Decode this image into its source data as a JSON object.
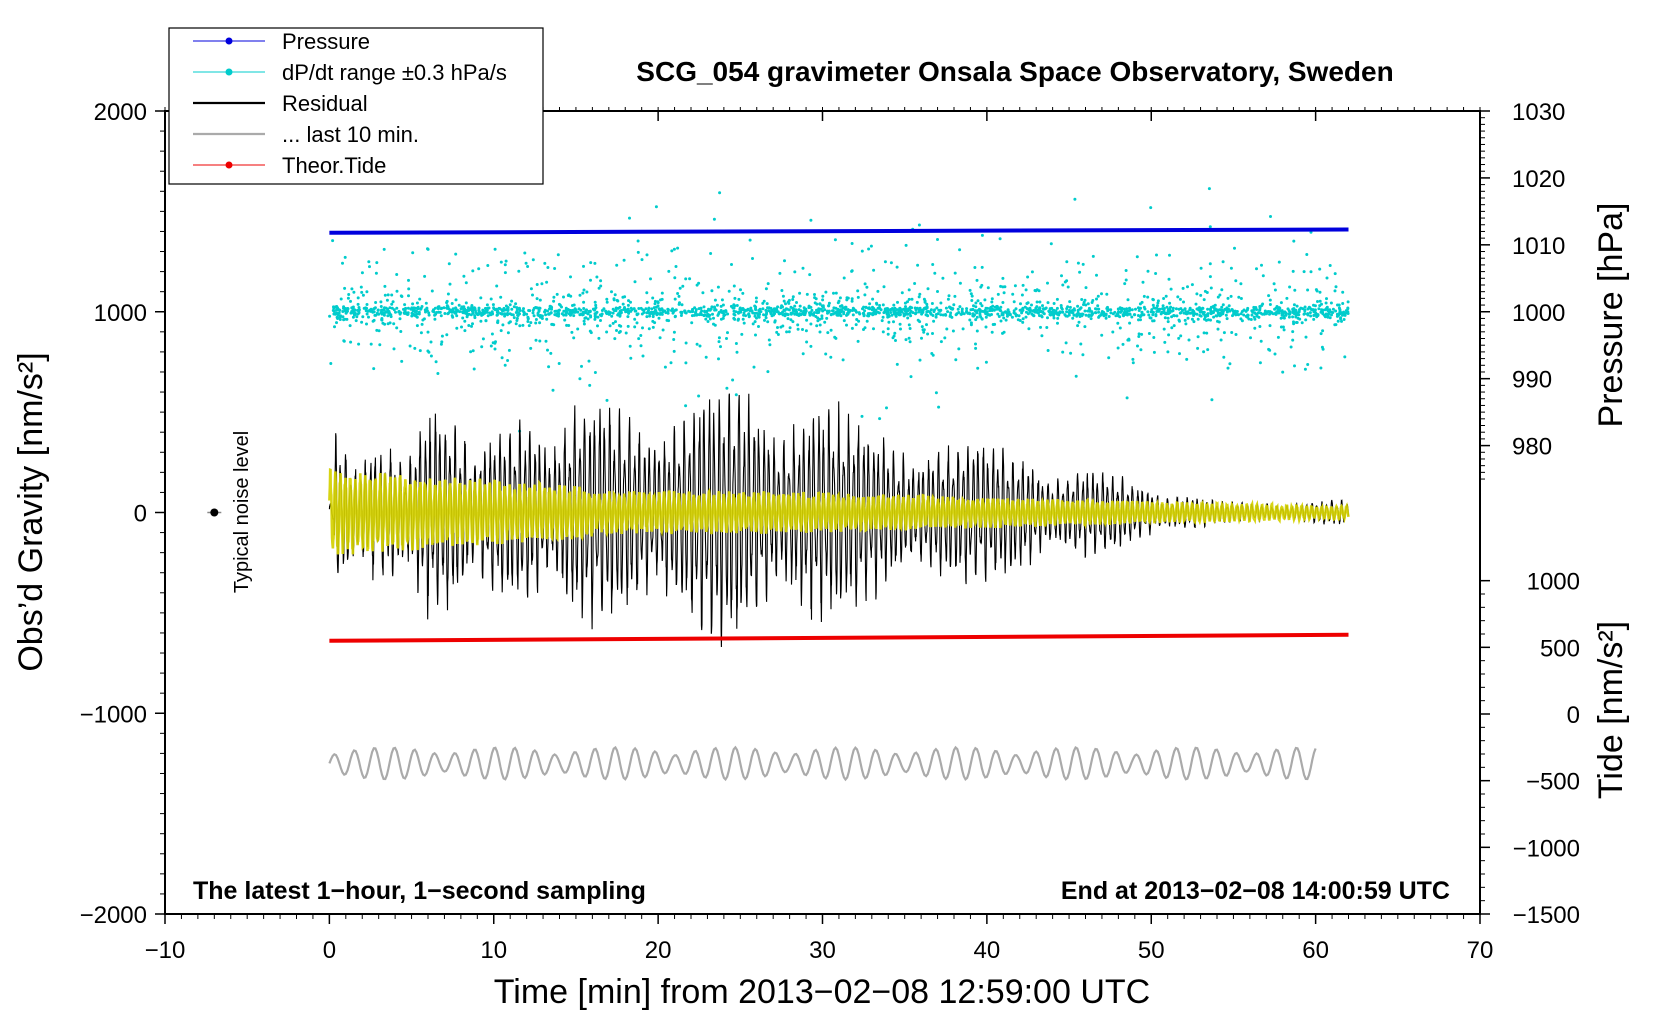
{
  "chart_data": {
    "type": "line",
    "title": "SCG_054 gravimeter Onsala Space Observatory, Sweden",
    "xlabel": "Time [min] from 2013−02−08 12:59:00 UTC",
    "ylabel_left": "Obs’d Gravity [nm/s²]",
    "ylabel_right_top": "Pressure [hPa]",
    "ylabel_right_bottom": "Tide [nm/s²]",
    "xlim": [
      -10,
      70
    ],
    "ylim": [
      -2000,
      2000
    ],
    "x_ticks": [
      -10,
      0,
      10,
      20,
      30,
      40,
      50,
      60,
      70
    ],
    "x_tick_labels": [
      "−10",
      "0",
      "10",
      "20",
      "30",
      "40",
      "50",
      "60",
      "70"
    ],
    "y_ticks": [
      -2000,
      -1000,
      0,
      1000,
      2000
    ],
    "y_tick_labels": [
      "−2000",
      "−1000",
      "0",
      "1000",
      "2000"
    ],
    "pressure_axis": {
      "ticks": [
        980,
        990,
        1000,
        1010,
        1020,
        1030
      ],
      "tick_labels": [
        "980",
        "990",
        "1000",
        "1010",
        "1020",
        "1030"
      ],
      "range": [
        970,
        1030
      ]
    },
    "tide_axis": {
      "ticks": [
        -1500,
        -1000,
        -500,
        0,
        500,
        1000
      ],
      "tick_labels": [
        "−1500",
        "−1000",
        "−500",
        "0",
        "500",
        "1000"
      ],
      "range": [
        -1500,
        1000
      ]
    },
    "annotations": {
      "bottom_left": "The latest 1−hour, 1−second sampling",
      "bottom_right": "End at 2013−02−08 14:00:59 UTC",
      "noise": "Typical noise level"
    },
    "legend": {
      "position": "top-left",
      "entries": [
        {
          "label": "Pressure",
          "color": "#0000dd",
          "style": "line-dot"
        },
        {
          "label": "dP/dt range ±0.3 hPa/s",
          "color": "#00cccc",
          "style": "line-dot"
        },
        {
          "label": "Residual",
          "color": "#000000",
          "style": "line"
        },
        {
          "label": "... last 10 min.",
          "color": "#aaaaaa",
          "style": "line"
        },
        {
          "label": "Theor.Tide",
          "color": "#ee0000",
          "style": "line-dot"
        }
      ]
    },
    "series": [
      {
        "name": "Pressure",
        "axis": "pressure_hPa",
        "x_range": [
          0,
          62
        ],
        "y_start": 1011.8,
        "y_end": 1012.3,
        "color": "#0000dd"
      },
      {
        "name": "dP/dt",
        "axis": "gravity_offset",
        "x_range": [
          0,
          62
        ],
        "center": 1000,
        "spread": 300,
        "color": "#00cccc"
      },
      {
        "name": "Residual",
        "axis": "gravity",
        "x_range": [
          0,
          62
        ],
        "amplitude_peaks": [
          {
            "t": 0.3,
            "amp": 450
          },
          {
            "t": 3.0,
            "amp": 350
          },
          {
            "t": 6.3,
            "amp": 580
          },
          {
            "t": 11.5,
            "amp": 520
          },
          {
            "t": 15.5,
            "amp": 640
          },
          {
            "t": 24.3,
            "amp": 720
          },
          {
            "t": 30.5,
            "amp": 580
          },
          {
            "t": 40.5,
            "amp": 380
          },
          {
            "t": 47.5,
            "amp": 220
          },
          {
            "t": 54.0,
            "amp": 60
          },
          {
            "t": 62.0,
            "amp": 70
          }
        ],
        "color": "#000000"
      },
      {
        "name": "Residual (smoothed)",
        "axis": "gravity",
        "x_range": [
          0,
          62
        ],
        "color": "#d4d000"
      },
      {
        "name": "... last 10 min.",
        "axis": "gravity",
        "x_range": [
          0,
          60
        ],
        "center": -1250,
        "amplitude": 80,
        "color": "#aaaaaa"
      },
      {
        "name": "Theor.Tide",
        "axis": "tide_nm_s2",
        "x_range": [
          0,
          62
        ],
        "y_start": 549,
        "y_end": 594,
        "color": "#ee0000"
      }
    ],
    "noise_marker": {
      "x": -7,
      "y": 0
    }
  }
}
